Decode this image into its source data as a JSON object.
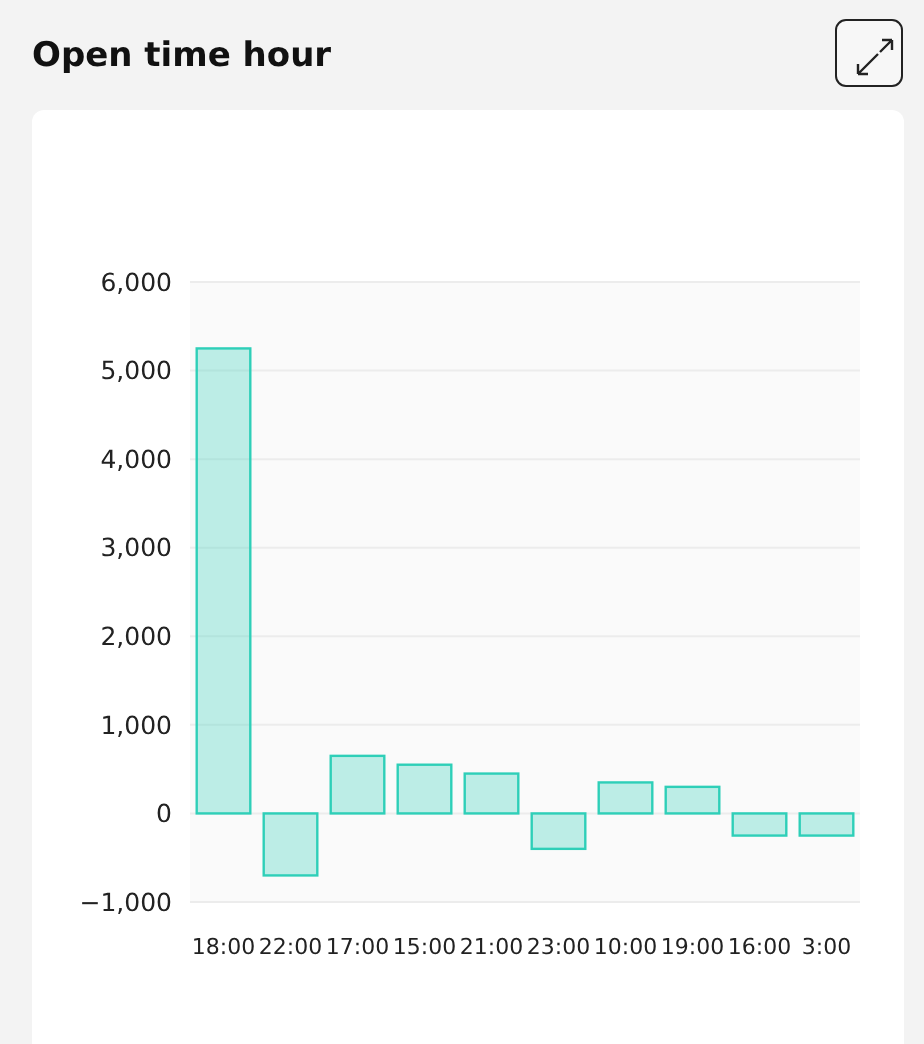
{
  "chart_data": {
    "type": "bar",
    "title": "Open time hour",
    "categories": [
      "18:00",
      "22:00",
      "17:00",
      "15:00",
      "21:00",
      "23:00",
      "10:00",
      "19:00",
      "16:00",
      "3:00"
    ],
    "values": [
      5250,
      -700,
      650,
      550,
      450,
      -400,
      350,
      300,
      -250,
      -250
    ],
    "color": "#2ecfb8",
    "ylim": [
      -1000,
      6000
    ],
    "yticks": [
      {
        "value": -1000,
        "label": "−1,000"
      },
      {
        "value": 0,
        "label": "0"
      },
      {
        "value": 1000,
        "label": "1,000"
      },
      {
        "value": 2000,
        "label": "2,000"
      },
      {
        "value": 3000,
        "label": "3,000"
      },
      {
        "value": 4000,
        "label": "4,000"
      },
      {
        "value": 5000,
        "label": "5,000"
      },
      {
        "value": 6000,
        "label": "6,000"
      }
    ],
    "grid": "y"
  }
}
